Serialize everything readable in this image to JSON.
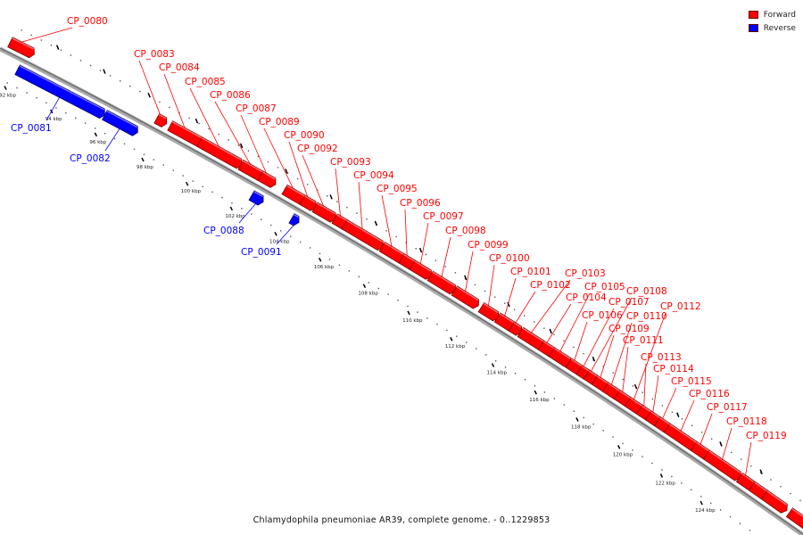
{
  "caption": "Chlamydophila pneumoniae AR39, complete genome. - 0..1229853",
  "legend": [
    {
      "label": "Forward",
      "color": "#ff0000"
    },
    {
      "label": "Reverse",
      "color": "#0000ff"
    }
  ],
  "colors": {
    "forward": "#ff0000",
    "reverse": "#0000ff",
    "backbone": "#999999"
  },
  "ticks": [
    "92 kbp",
    "94 kbp",
    "96 kbp",
    "98 kbp",
    "100 kbp",
    "102 kbp",
    "104 kbp",
    "106 kbp",
    "108 kbp",
    "110 kbp",
    "112 kbp",
    "114 kbp",
    "116 kbp",
    "118 kbp",
    "120 kbp",
    "122 kbp",
    "124 kbp"
  ],
  "genes": [
    {
      "name": "CP_0080",
      "strand": "forward"
    },
    {
      "name": "CP_0081",
      "strand": "reverse"
    },
    {
      "name": "CP_0082",
      "strand": "reverse"
    },
    {
      "name": "CP_0083",
      "strand": "forward"
    },
    {
      "name": "CP_0084",
      "strand": "forward"
    },
    {
      "name": "CP_0085",
      "strand": "forward"
    },
    {
      "name": "CP_0086",
      "strand": "forward"
    },
    {
      "name": "CP_0087",
      "strand": "forward"
    },
    {
      "name": "CP_0088",
      "strand": "reverse"
    },
    {
      "name": "CP_0089",
      "strand": "forward"
    },
    {
      "name": "CP_0090",
      "strand": "forward"
    },
    {
      "name": "CP_0091",
      "strand": "reverse"
    },
    {
      "name": "CP_0092",
      "strand": "forward"
    },
    {
      "name": "CP_0093",
      "strand": "forward"
    },
    {
      "name": "CP_0094",
      "strand": "forward"
    },
    {
      "name": "CP_0095",
      "strand": "forward"
    },
    {
      "name": "CP_0096",
      "strand": "forward"
    },
    {
      "name": "CP_0097",
      "strand": "forward"
    },
    {
      "name": "CP_0098",
      "strand": "forward"
    },
    {
      "name": "CP_0099",
      "strand": "forward"
    },
    {
      "name": "CP_0100",
      "strand": "forward"
    },
    {
      "name": "CP_0101",
      "strand": "forward"
    },
    {
      "name": "CP_0102",
      "strand": "forward"
    },
    {
      "name": "CP_0103",
      "strand": "forward"
    },
    {
      "name": "CP_0104",
      "strand": "forward"
    },
    {
      "name": "CP_0105",
      "strand": "forward"
    },
    {
      "name": "CP_0106",
      "strand": "forward"
    },
    {
      "name": "CP_0107",
      "strand": "forward"
    },
    {
      "name": "CP_0108",
      "strand": "forward"
    },
    {
      "name": "CP_0109",
      "strand": "forward"
    },
    {
      "name": "CP_0110",
      "strand": "forward"
    },
    {
      "name": "CP_0111",
      "strand": "forward"
    },
    {
      "name": "CP_0112",
      "strand": "forward"
    },
    {
      "name": "CP_0113",
      "strand": "forward"
    },
    {
      "name": "CP_0114",
      "strand": "forward"
    },
    {
      "name": "CP_0115",
      "strand": "forward"
    },
    {
      "name": "CP_0116",
      "strand": "forward"
    },
    {
      "name": "CP_0117",
      "strand": "forward"
    },
    {
      "name": "CP_0118",
      "strand": "forward"
    },
    {
      "name": "CP_0119",
      "strand": "forward"
    }
  ]
}
